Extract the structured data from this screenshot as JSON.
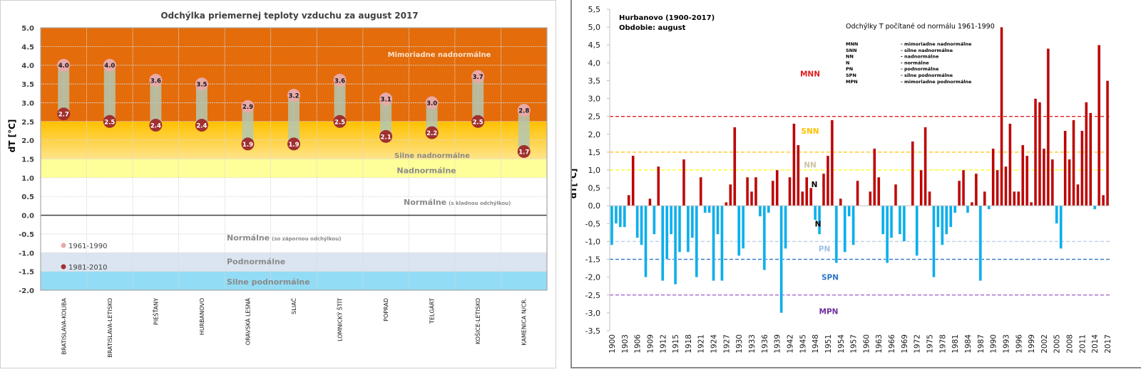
{
  "chart_data": [
    {
      "type": "range-dot",
      "title": "Odchýlka priemernej teploty vzduchu za august 2017",
      "ylabel": "dT [°C]",
      "ylim": [
        -2.0,
        5.0
      ],
      "yticks": [
        "-2.0",
        "-1.5",
        "-1.0",
        "-0.5",
        "0.0",
        "0.5",
        "1.0",
        "1.5",
        "2.0",
        "2.5",
        "3.0",
        "3.5",
        "4.0",
        "4.5",
        "5.0"
      ],
      "grid": true,
      "categories": [
        "BRATISLAVA-KOLIBA",
        "BRATISLAVA-LETISKO",
        "PIEŠŤANY",
        "HURBANOVO",
        "ORAVSKÁ LESNÁ",
        "SLIAČ",
        "LOMNICKÝ ŠTÍT",
        "POPRAD",
        "TELGÁRT",
        "KOŠICE-LETISKO",
        "KAMENICA N/CR."
      ],
      "series": [
        {
          "name": "1961-1990",
          "color": "#e8a9a9",
          "values": [
            4.0,
            4.0,
            3.6,
            3.5,
            2.9,
            3.2,
            3.6,
            3.1,
            3.0,
            3.7,
            2.8
          ]
        },
        {
          "name": "1981-2010",
          "color": "#a03030",
          "values": [
            2.7,
            2.5,
            2.4,
            2.4,
            1.9,
            1.9,
            2.5,
            2.1,
            2.2,
            2.5,
            1.7
          ]
        }
      ],
      "data_labels_1961": [
        "4.0",
        "4.0",
        "3.6",
        "3.5",
        "2.9",
        "3.2",
        "3.6",
        "3.1",
        "3.0",
        "3.7",
        "2.8"
      ],
      "data_labels_1981": [
        "2.7",
        "2.5",
        "2.4",
        "2.4",
        "1.9",
        "1.9",
        "2.5",
        "2.1",
        "2.2",
        "2.5",
        "1.7"
      ],
      "legend": [
        "1961-1990",
        "1981-2010"
      ],
      "legend_position": "bottom-left",
      "bands": [
        {
          "label": "Mimoriadne nadnormálne",
          "from": 2.5,
          "to": 5.0,
          "color": "#e46c0a"
        },
        {
          "label": "Silne nadnormálne",
          "from": 1.5,
          "to": 2.5,
          "color": "#ffc000"
        },
        {
          "label": "Nadnormálne",
          "from": 1.0,
          "to": 1.5,
          "color": "#ffff99"
        },
        {
          "label": "Normálne",
          "sublabel": "(s kladnou odchýlkou)",
          "from": 0.0,
          "to": 1.0,
          "color": "#ffffff"
        },
        {
          "label": "Normálne",
          "sublabel": "(so zápornou odchýlkou)",
          "from": -1.0,
          "to": 0.0,
          "color": "#ffffff"
        },
        {
          "label": "Podnormálne",
          "from": -1.5,
          "to": -1.0,
          "color": "#dbe5f1"
        },
        {
          "label": "Silne podnormálne",
          "from": -2.0,
          "to": -1.5,
          "color": "#93dcf5"
        }
      ]
    },
    {
      "type": "bar",
      "title": "Hurbanovo (1900-2017)",
      "subtitle": "Obdobie: august",
      "note": "Odchýlky T počítané od normálu 1961-1990",
      "ylabel": "dT[°C]",
      "ylim": [
        -3.5,
        5.5
      ],
      "yticks": [
        "-3,5",
        "-3,0",
        "-2,5",
        "-2,0",
        "-1,5",
        "-1,0",
        "-0,5",
        "0,0",
        "0,5",
        "1,0",
        "1,5",
        "2,0",
        "2,5",
        "3,0",
        "3,5",
        "4,0",
        "4,5",
        "5,0",
        "5,5"
      ],
      "x_start": 1900,
      "x_end": 2017,
      "xtick_labels": [
        "1900",
        "1903",
        "1906",
        "1909",
        "1912",
        "1915",
        "1918",
        "1921",
        "1924",
        "1927",
        "1930",
        "1933",
        "1936",
        "1939",
        "1942",
        "1945",
        "1948",
        "1951",
        "1954",
        "1957",
        "1960",
        "1963",
        "1966",
        "1969",
        "1972",
        "1975",
        "1978",
        "1981",
        "1984",
        "1987",
        "1990",
        "1993",
        "1996",
        "1999",
        "2002",
        "2005",
        "2008",
        "2011",
        "2014",
        "2017"
      ],
      "values": [
        -1.1,
        -0.5,
        -0.6,
        -0.6,
        0.3,
        1.4,
        -0.9,
        -1.1,
        -2.0,
        0.2,
        -0.8,
        1.1,
        -2.1,
        -1.5,
        -0.8,
        -2.2,
        -1.3,
        1.3,
        -1.3,
        -0.9,
        -2.0,
        0.8,
        -0.2,
        -0.2,
        -2.1,
        -0.8,
        -2.1,
        0.1,
        0.6,
        2.2,
        -1.4,
        -1.2,
        0.8,
        0.4,
        0.8,
        -0.3,
        -1.8,
        -0.2,
        0.7,
        1.0,
        -3.0,
        -1.2,
        0.8,
        2.3,
        1.7,
        0.4,
        0.8,
        0.5,
        -0.4,
        -0.8,
        0.9,
        1.4,
        2.4,
        -1.6,
        0.2,
        -1.3,
        -0.3,
        -1.1,
        0.7,
        0.0,
        0.0,
        0.4,
        1.6,
        0.8,
        -0.8,
        -1.6,
        -0.9,
        0.6,
        -0.8,
        -1.0,
        0.0,
        1.8,
        -1.4,
        1.0,
        2.2,
        0.4,
        -2.0,
        -0.6,
        -1.1,
        -0.8,
        -0.6,
        -0.2,
        0.7,
        1.0,
        -0.2,
        0.1,
        0.9,
        -2.1,
        0.4,
        -0.1,
        1.6,
        1.0,
        5.0,
        1.1,
        2.3,
        0.4,
        0.4,
        1.7,
        1.4,
        0.1,
        3.0,
        2.9,
        1.6,
        4.4,
        1.3,
        -0.5,
        -1.2,
        2.1,
        1.3,
        2.4,
        0.6,
        2.1,
        2.9,
        2.6,
        -0.1,
        4.5,
        0.3,
        3.5
      ],
      "positive_color": "#c00000",
      "negative_color": "#00b0f0",
      "thresholds": [
        {
          "name": "MNN",
          "value": 2.5,
          "color": "#e02020"
        },
        {
          "name": "SNN",
          "value": 1.5,
          "color": "#ffc000"
        },
        {
          "name": "NN",
          "value": 1.0,
          "color": "#ffff00"
        },
        {
          "name": "PN",
          "value": -1.0,
          "color": "#b8d0ec"
        },
        {
          "name": "SPN",
          "value": -1.5,
          "color": "#2e75c6"
        },
        {
          "name": "MPN",
          "value": -2.5,
          "color": "#9b59c6"
        }
      ],
      "zone_labels": [
        {
          "text": "MNN",
          "value": 3.7,
          "color": "#e02020"
        },
        {
          "text": "SNN",
          "value": 2.1,
          "color": "#ffc000"
        },
        {
          "text": "NN",
          "value": 1.15,
          "color": "#c9c3a5"
        },
        {
          "text": "N",
          "value": 0.6,
          "color": "#000000"
        },
        {
          "text": "N",
          "value": -0.5,
          "color": "#000000"
        },
        {
          "text": "PN",
          "value": -1.2,
          "color": "#9dbfe6"
        },
        {
          "text": "SPN",
          "value": -2.0,
          "color": "#2e75c6"
        },
        {
          "text": "MPN",
          "value": -2.95,
          "color": "#7030a0"
        }
      ],
      "legend": [
        {
          "abbr": "MNN",
          "desc": "- mimoriadne nadnormálne"
        },
        {
          "abbr": "SNN",
          "desc": "- silne nadnormálne"
        },
        {
          "abbr": "NN",
          "desc": "- nadnormálne"
        },
        {
          "abbr": "N",
          "desc": "- normálne"
        },
        {
          "abbr": "PN",
          "desc": "- podnormálne"
        },
        {
          "abbr": "SPN",
          "desc": "- silne podnormálne"
        },
        {
          "abbr": "MPN",
          "desc": "- mimoriadne podnormálne"
        }
      ]
    }
  ]
}
